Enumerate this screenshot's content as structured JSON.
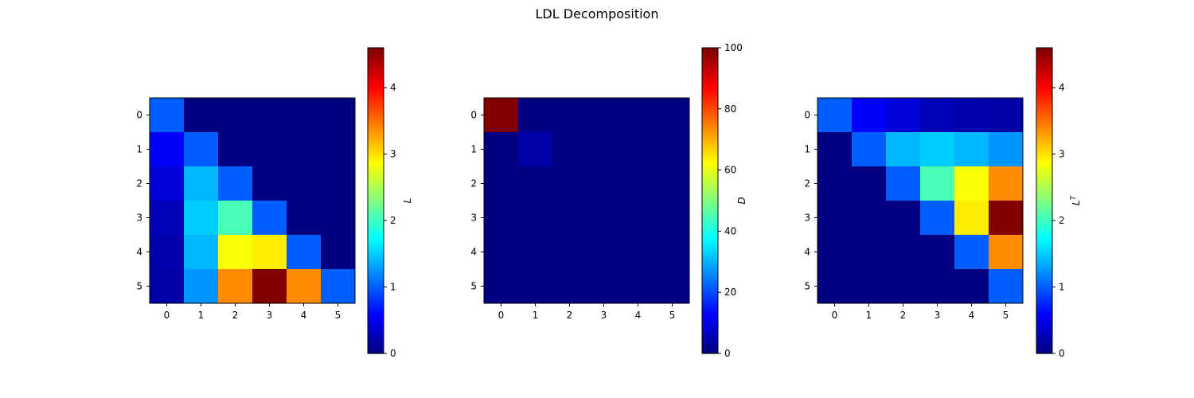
{
  "title": "LDL Decomposition",
  "chart_data": [
    {
      "type": "heatmap",
      "colormap": "jet",
      "colorbar_label": "L",
      "vmin": 0,
      "vmax": 4.6,
      "colorbar_ticks": [
        0,
        1,
        2,
        3,
        4
      ],
      "x_ticks": [
        0,
        1,
        2,
        3,
        4,
        5
      ],
      "y_ticks": [
        0,
        1,
        2,
        3,
        4,
        5
      ],
      "values": [
        [
          1.0,
          0.0,
          0.0,
          0.0,
          0.0,
          0.0
        ],
        [
          0.55,
          1.0,
          0.0,
          0.0,
          0.0,
          0.0
        ],
        [
          0.4,
          1.4,
          1.0,
          0.0,
          0.0,
          0.0
        ],
        [
          0.25,
          1.5,
          2.05,
          1.0,
          0.0,
          0.0
        ],
        [
          0.2,
          1.4,
          2.85,
          2.95,
          1.0,
          0.0
        ],
        [
          0.18,
          1.25,
          3.4,
          4.6,
          3.4,
          1.0
        ]
      ]
    },
    {
      "type": "heatmap",
      "colormap": "jet",
      "colorbar_label": "D",
      "vmin": 0,
      "vmax": 100,
      "colorbar_ticks": [
        0,
        20,
        40,
        60,
        80,
        100
      ],
      "x_ticks": [
        0,
        1,
        2,
        3,
        4,
        5
      ],
      "y_ticks": [
        0,
        1,
        2,
        3,
        4,
        5
      ],
      "values": [
        [
          100,
          0,
          0,
          0,
          0,
          0
        ],
        [
          0,
          4,
          0,
          0,
          0,
          0
        ],
        [
          0,
          0,
          0.5,
          0,
          0,
          0
        ],
        [
          0,
          0,
          0,
          0.3,
          0,
          0
        ],
        [
          0,
          0,
          0,
          0,
          0.2,
          0
        ],
        [
          0,
          0,
          0,
          0,
          0,
          0.1
        ]
      ]
    },
    {
      "type": "heatmap",
      "colormap": "jet",
      "colorbar_label": "L^T",
      "vmin": 0,
      "vmax": 4.6,
      "colorbar_ticks": [
        0,
        1,
        2,
        3,
        4
      ],
      "x_ticks": [
        0,
        1,
        2,
        3,
        4,
        5
      ],
      "y_ticks": [
        0,
        1,
        2,
        3,
        4,
        5
      ],
      "values": [
        [
          1.0,
          0.55,
          0.4,
          0.25,
          0.2,
          0.18
        ],
        [
          0.0,
          1.0,
          1.4,
          1.5,
          1.4,
          1.25
        ],
        [
          0.0,
          0.0,
          1.0,
          2.05,
          2.85,
          3.4
        ],
        [
          0.0,
          0.0,
          0.0,
          1.0,
          2.95,
          4.6
        ],
        [
          0.0,
          0.0,
          0.0,
          0.0,
          1.0,
          3.4
        ],
        [
          0.0,
          0.0,
          0.0,
          0.0,
          0.0,
          1.0
        ]
      ]
    }
  ]
}
